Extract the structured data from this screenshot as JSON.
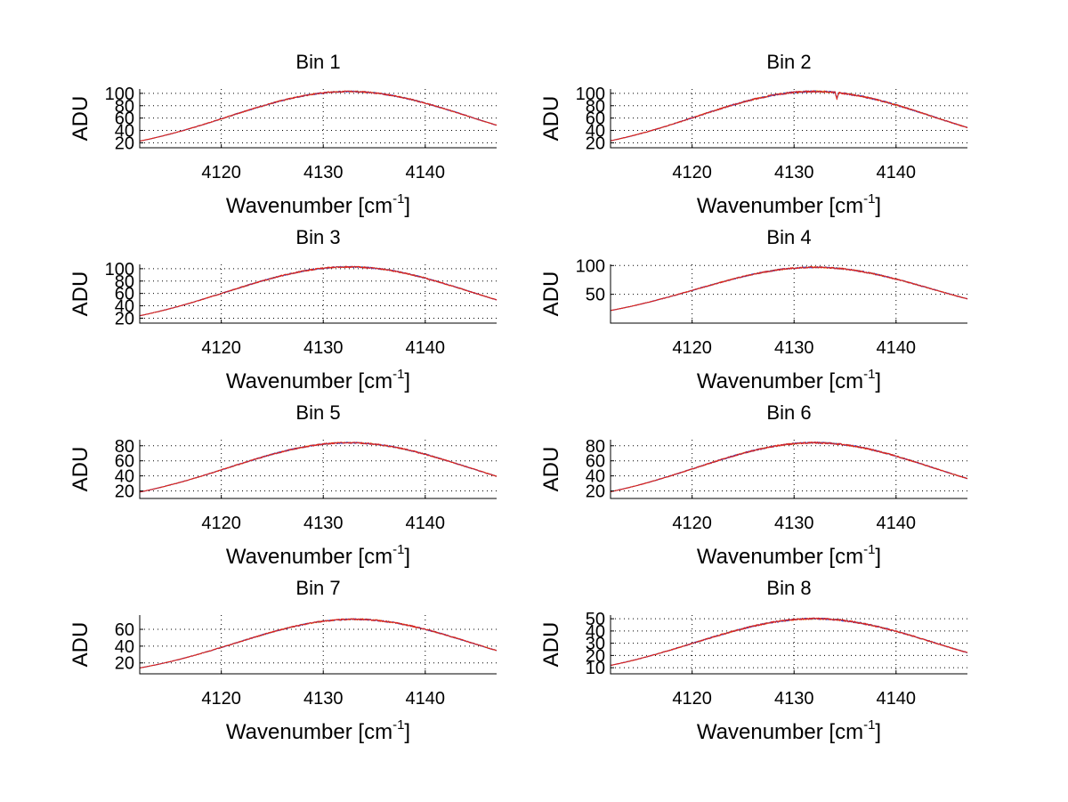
{
  "chart_data": [
    {
      "type": "line",
      "title": "Bin 1",
      "xlabel": "Wavenumber [cm",
      "xlabel_sup": "-1",
      "xlabel_end": "]",
      "ylabel": "ADU",
      "xlim": [
        4112,
        4147
      ],
      "ylim": [
        12,
        107
      ],
      "xticks": [
        4120,
        4130,
        4140
      ],
      "yticks": [
        20,
        40,
        60,
        80,
        100
      ],
      "peak": 103,
      "center": 4132.5,
      "sigma": 11.8,
      "noise": 1.2,
      "dip": null,
      "series": [
        {
          "name": "orange",
          "color": "#f5a623"
        },
        {
          "name": "blue",
          "color": "#3344cc"
        },
        {
          "name": "red",
          "color": "#e0201b"
        }
      ]
    },
    {
      "type": "line",
      "title": "Bin 2",
      "xlabel": "Wavenumber [cm",
      "xlabel_sup": "-1",
      "xlabel_end": "]",
      "ylabel": "ADU",
      "xlim": [
        4112,
        4147
      ],
      "ylim": [
        12,
        107
      ],
      "xticks": [
        4120,
        4130,
        4140
      ],
      "yticks": [
        20,
        40,
        60,
        80,
        100
      ],
      "peak": 103,
      "center": 4132,
      "sigma": 11.6,
      "noise": 1.5,
      "dip": {
        "x": 4134.2,
        "depth": 10
      },
      "series": [
        {
          "name": "orange",
          "color": "#f5a623"
        },
        {
          "name": "blue",
          "color": "#3344cc"
        },
        {
          "name": "red",
          "color": "#e0201b"
        }
      ]
    },
    {
      "type": "line",
      "title": "Bin 3",
      "xlabel": "Wavenumber [cm",
      "xlabel_sup": "-1",
      "xlabel_end": "]",
      "ylabel": "ADU",
      "xlim": [
        4112,
        4147
      ],
      "ylim": [
        12,
        107
      ],
      "xticks": [
        4120,
        4130,
        4140
      ],
      "yticks": [
        20,
        40,
        60,
        80,
        100
      ],
      "peak": 103,
      "center": 4132.5,
      "sigma": 12,
      "noise": 1.2,
      "dip": null,
      "series": [
        {
          "name": "orange",
          "color": "#f5a623"
        },
        {
          "name": "blue",
          "color": "#3344cc"
        },
        {
          "name": "red",
          "color": "#e0201b"
        }
      ]
    },
    {
      "type": "line",
      "title": "Bin 4",
      "xlabel": "Wavenumber [cm",
      "xlabel_sup": "-1",
      "xlabel_end": "]",
      "ylabel": "ADU",
      "xlim": [
        4112,
        4147
      ],
      "ylim": [
        0,
        102
      ],
      "xticks": [
        4120,
        4130,
        4140
      ],
      "yticks": [
        50,
        100
      ],
      "peak": 97,
      "center": 4132,
      "sigma": 11.6,
      "noise": 1.3,
      "dip": null,
      "series": [
        {
          "name": "orange",
          "color": "#f5a623"
        },
        {
          "name": "blue",
          "color": "#3344cc"
        },
        {
          "name": "red",
          "color": "#e0201b"
        }
      ]
    },
    {
      "type": "line",
      "title": "Bin 5",
      "xlabel": "Wavenumber [cm",
      "xlabel_sup": "-1",
      "xlabel_end": "]",
      "ylabel": "ADU",
      "xlim": [
        4112,
        4147
      ],
      "ylim": [
        10,
        88
      ],
      "xticks": [
        4120,
        4130,
        4140
      ],
      "yticks": [
        20,
        40,
        60,
        80
      ],
      "peak": 84,
      "center": 4132.5,
      "sigma": 11.8,
      "noise": 1.0,
      "dip": null,
      "series": [
        {
          "name": "orange",
          "color": "#f5a623"
        },
        {
          "name": "blue",
          "color": "#3344cc"
        },
        {
          "name": "red",
          "color": "#e0201b"
        }
      ]
    },
    {
      "type": "line",
      "title": "Bin 6",
      "xlabel": "Wavenumber [cm",
      "xlabel_sup": "-1",
      "xlabel_end": "]",
      "ylabel": "ADU",
      "xlim": [
        4112,
        4147
      ],
      "ylim": [
        10,
        88
      ],
      "xticks": [
        4120,
        4130,
        4140
      ],
      "yticks": [
        20,
        40,
        60,
        80
      ],
      "peak": 84,
      "center": 4132,
      "sigma": 11.6,
      "noise": 1.1,
      "dip": null,
      "series": [
        {
          "name": "orange",
          "color": "#f5a623"
        },
        {
          "name": "blue",
          "color": "#3344cc"
        },
        {
          "name": "red",
          "color": "#e0201b"
        }
      ]
    },
    {
      "type": "line",
      "title": "Bin 7",
      "xlabel": "Wavenumber [cm",
      "xlabel_sup": "-1",
      "xlabel_end": "]",
      "ylabel": "ADU",
      "xlim": [
        4112,
        4147
      ],
      "ylim": [
        7,
        77
      ],
      "xticks": [
        4120,
        4130,
        4140
      ],
      "yticks": [
        20,
        40,
        60
      ],
      "peak": 72,
      "center": 4133,
      "sigma": 11.6,
      "noise": 0.9,
      "dip": null,
      "series": [
        {
          "name": "orange",
          "color": "#f5a623"
        },
        {
          "name": "blue",
          "color": "#3344cc"
        },
        {
          "name": "red",
          "color": "#e0201b"
        }
      ]
    },
    {
      "type": "line",
      "title": "Bin 8",
      "xlabel": "Wavenumber [cm",
      "xlabel_sup": "-1",
      "xlabel_end": "]",
      "ylabel": "ADU",
      "xlim": [
        4112,
        4147
      ],
      "ylim": [
        5,
        53
      ],
      "xticks": [
        4120,
        4130,
        4140
      ],
      "yticks": [
        10,
        20,
        30,
        40,
        50
      ],
      "peak": 50,
      "center": 4132,
      "sigma": 11.8,
      "noise": 0.7,
      "dip": null,
      "series": [
        {
          "name": "orange",
          "color": "#f5a623"
        },
        {
          "name": "blue",
          "color": "#3344cc"
        },
        {
          "name": "red",
          "color": "#e0201b"
        }
      ]
    }
  ]
}
